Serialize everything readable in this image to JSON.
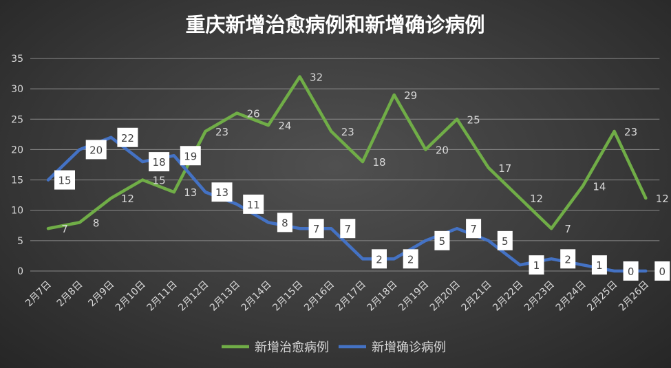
{
  "chart_data": {
    "type": "line",
    "title": "重庆新增治愈病例和新增确诊病例",
    "xlabel": "",
    "ylabel": "",
    "ylim": [
      0,
      35
    ],
    "yticks": [
      0,
      5,
      10,
      15,
      20,
      25,
      30,
      35
    ],
    "grid": true,
    "legend_position": "bottom",
    "categories": [
      "2月7日",
      "2月8日",
      "2月9日",
      "2月10日",
      "2月11日",
      "2月12日",
      "2月13日",
      "2月14日",
      "2月15日",
      "2月16日",
      "2月17日",
      "2月18日",
      "2月19日",
      "2月20日",
      "2月21日",
      "2月22日",
      "2月23日",
      "2月24日",
      "2月25日",
      "2月26日"
    ],
    "series": [
      {
        "name": "新增治愈病例",
        "color": "#70ad47",
        "values": [
          7,
          8,
          12,
          15,
          13,
          23,
          26,
          24,
          32,
          23,
          18,
          29,
          20,
          25,
          17,
          12,
          7,
          14,
          23,
          12
        ],
        "label_style": "plain"
      },
      {
        "name": "新增确诊病例",
        "color": "#4472c4",
        "values": [
          15,
          20,
          22,
          18,
          19,
          13,
          11,
          8,
          7,
          7,
          2,
          2,
          5,
          7,
          5,
          1,
          2,
          1,
          0,
          0
        ],
        "label_style": "boxed"
      }
    ]
  }
}
